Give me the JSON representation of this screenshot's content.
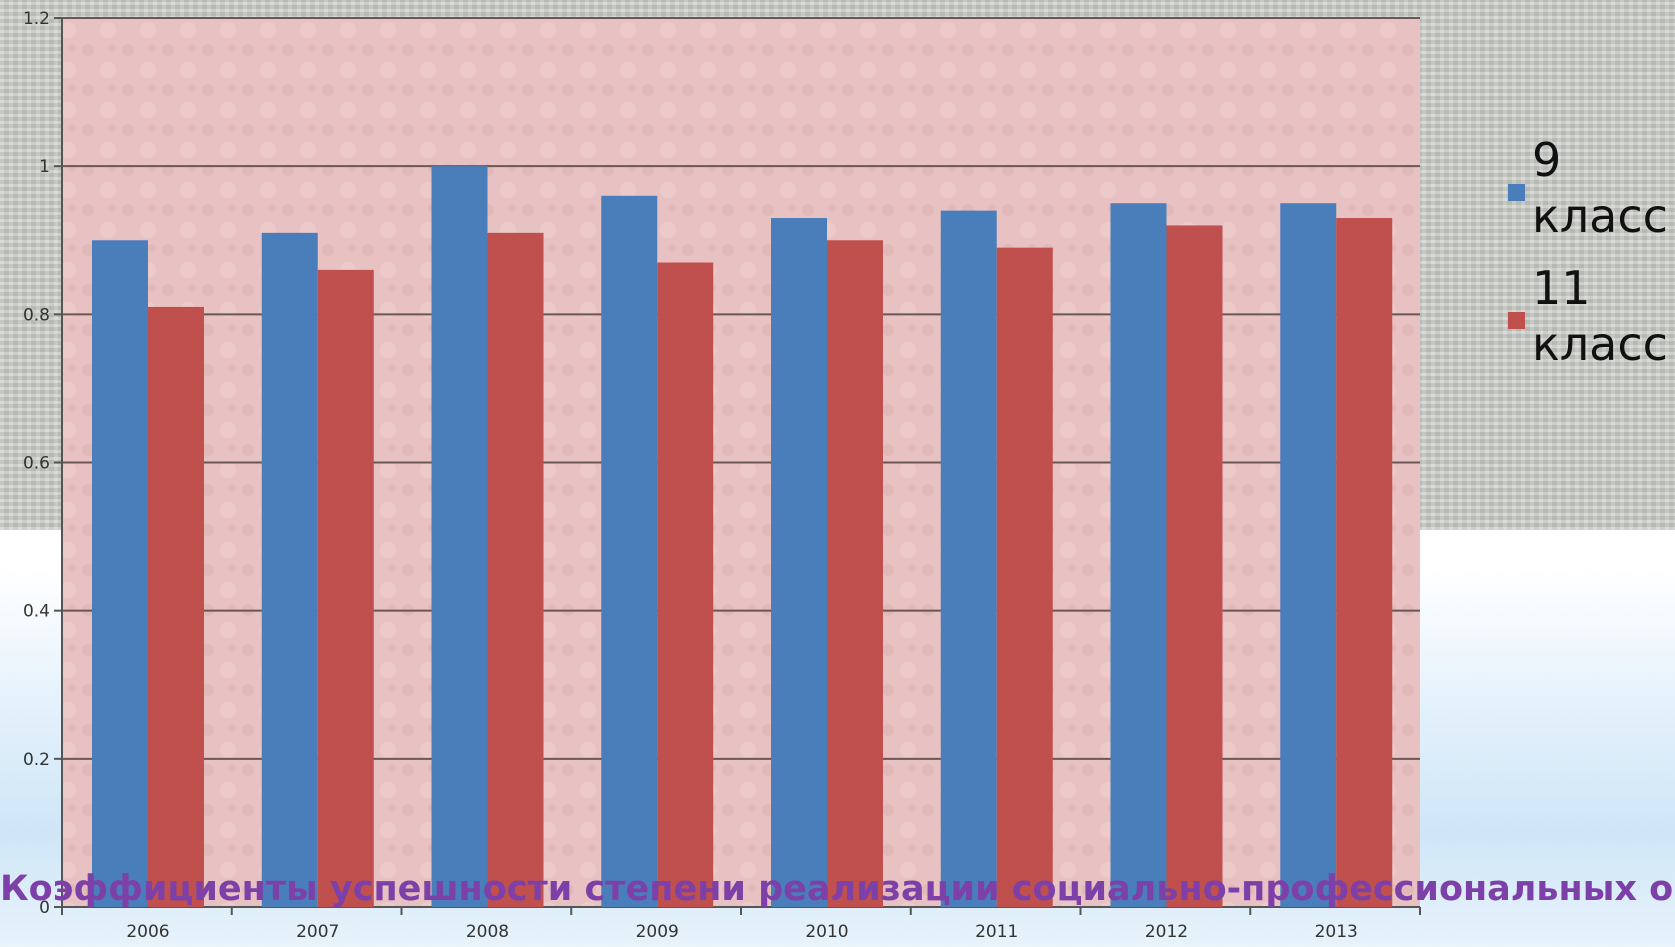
{
  "chart_data": {
    "type": "bar",
    "categories": [
      "2006",
      "2007",
      "2008",
      "2009",
      "2010",
      "2011",
      "2012",
      "2013"
    ],
    "series": [
      {
        "name": "9 класс",
        "color": "#4a7ebb",
        "values": [
          0.9,
          0.91,
          1.0,
          0.96,
          0.93,
          0.94,
          0.95,
          0.95
        ]
      },
      {
        "name": "11 класс",
        "color": "#c0504d",
        "values": [
          0.81,
          0.86,
          0.91,
          0.87,
          0.9,
          0.89,
          0.92,
          0.93
        ]
      }
    ],
    "y_ticks": [
      "0",
      "0.2",
      "0.4",
      "0.6",
      "0.8",
      "1",
      "1.2"
    ],
    "ylim": [
      0,
      1.2
    ],
    "grid": true,
    "legend_position": "right",
    "plot_background": "#e8c2c2"
  },
  "caption": "Коэффициенты успешности степени реализации социально-профессиональных ориентаций по годам, представленные в гистограмме"
}
